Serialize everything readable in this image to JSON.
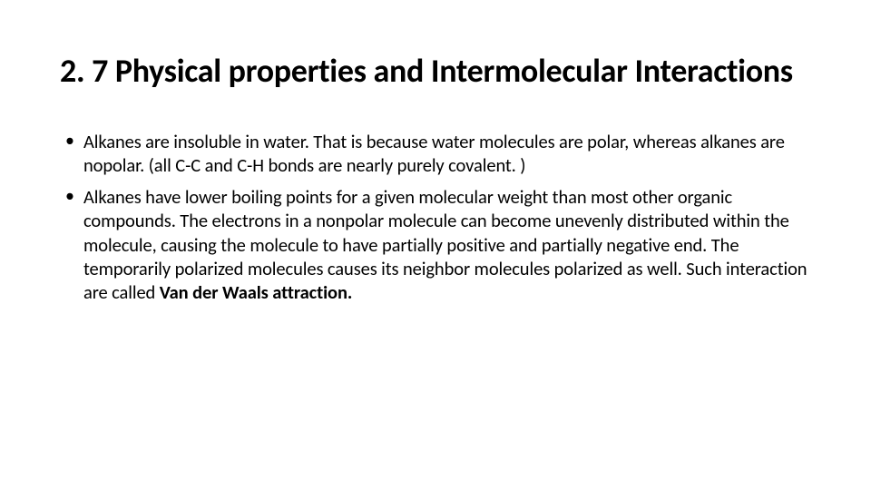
{
  "slide": {
    "title": "2. 7 Physical properties and Intermolecular Interactions",
    "bullets": [
      {
        "text": "Alkanes are insoluble in water. That is because water molecules are polar, whereas alkanes are nopolar. (all C-C and C-H bonds are nearly purely covalent. )"
      },
      {
        "prefix": "Alkanes have lower boiling points for a given molecular weight than most other organic compounds. The electrons in a nonpolar molecule can become unevenly distributed within the molecule, causing the molecule to have partially positive and partially negative end. The temporarily polarized molecules causes its neighbor molecules polarized as well. Such interaction are called ",
        "bold": "Van der Waals attraction."
      }
    ]
  },
  "style": {
    "background_color": "#ffffff",
    "text_color": "#000000",
    "title_fontsize": 36,
    "title_weight": 700,
    "body_fontsize": 20.5,
    "font_family": "Calibri"
  }
}
